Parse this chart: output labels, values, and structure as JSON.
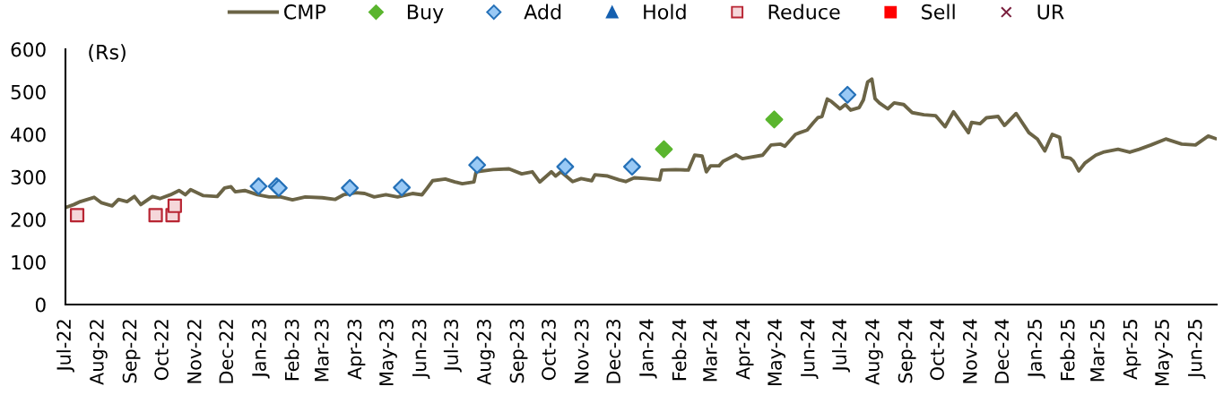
{
  "chart_data": {
    "type": "line",
    "ylabel": "(Rs)",
    "ylim": [
      0,
      600
    ],
    "yticks": [
      0,
      100,
      200,
      300,
      400,
      500,
      600
    ],
    "xlim": [
      "2022-07-01",
      "2025-06-20"
    ],
    "xticks": [
      {
        "value": "2022-07",
        "label": "Jul-22"
      },
      {
        "value": "2022-08",
        "label": "Aug-22"
      },
      {
        "value": "2022-09",
        "label": "Sep-22"
      },
      {
        "value": "2022-10",
        "label": "Oct-22"
      },
      {
        "value": "2022-11",
        "label": "Nov-22"
      },
      {
        "value": "2022-12",
        "label": "Dec-22"
      },
      {
        "value": "2023-01",
        "label": "Jan-23"
      },
      {
        "value": "2023-02",
        "label": "Feb-23"
      },
      {
        "value": "2023-03",
        "label": "Mar-23"
      },
      {
        "value": "2023-04",
        "label": "Apr-23"
      },
      {
        "value": "2023-05",
        "label": "May-23"
      },
      {
        "value": "2023-06",
        "label": "Jun-23"
      },
      {
        "value": "2023-07",
        "label": "Jul-23"
      },
      {
        "value": "2023-08",
        "label": "Aug-23"
      },
      {
        "value": "2023-09",
        "label": "Sep-23"
      },
      {
        "value": "2023-10",
        "label": "Oct-23"
      },
      {
        "value": "2023-11",
        "label": "Nov-23"
      },
      {
        "value": "2023-12",
        "label": "Dec-23"
      },
      {
        "value": "2024-01",
        "label": "Jan-24"
      },
      {
        "value": "2024-02",
        "label": "Feb-24"
      },
      {
        "value": "2024-03",
        "label": "Mar-24"
      },
      {
        "value": "2024-04",
        "label": "Apr-24"
      },
      {
        "value": "2024-05",
        "label": "May-24"
      },
      {
        "value": "2024-06",
        "label": "Jun-24"
      },
      {
        "value": "2024-07",
        "label": "Jul-24"
      },
      {
        "value": "2024-08",
        "label": "Aug-24"
      },
      {
        "value": "2024-09",
        "label": "Sep-24"
      },
      {
        "value": "2024-10",
        "label": "Oct-24"
      },
      {
        "value": "2024-11",
        "label": "Nov-24"
      },
      {
        "value": "2024-12",
        "label": "Dec-24"
      },
      {
        "value": "2025-01",
        "label": "Jan-25"
      },
      {
        "value": "2025-02",
        "label": "Feb-25"
      },
      {
        "value": "2025-03",
        "label": "Mar-25"
      },
      {
        "value": "2025-04",
        "label": "Apr-25"
      },
      {
        "value": "2025-05",
        "label": "May-25"
      },
      {
        "value": "2025-06",
        "label": "Jun-25"
      }
    ],
    "legend": "top",
    "series": [
      {
        "name": "CMP",
        "color": "#6b6446",
        "marker": "none",
        "line_style": "solid",
        "x": [
          "2022-07-01",
          "2022-07-09",
          "2022-07-15",
          "2022-07-28",
          "2022-08-04",
          "2022-08-14",
          "2022-08-20",
          "2022-08-28",
          "2022-09-04",
          "2022-09-10",
          "2022-09-21",
          "2022-09-28",
          "2022-10-08",
          "2022-10-16",
          "2022-10-22",
          "2022-10-27",
          "2022-11-08",
          "2022-11-21",
          "2022-11-28",
          "2022-12-04",
          "2022-12-08",
          "2022-12-17",
          "2022-12-29",
          "2023-01-09",
          "2023-01-20",
          "2023-01-31",
          "2023-02-12",
          "2023-02-28",
          "2023-03-12",
          "2023-03-20",
          "2023-04-01",
          "2023-04-09",
          "2023-04-18",
          "2023-04-29",
          "2023-05-10",
          "2023-05-24",
          "2023-06-02",
          "2023-06-07",
          "2023-06-12",
          "2023-06-24",
          "2023-07-03",
          "2023-07-10",
          "2023-07-21",
          "2023-07-23",
          "2023-08-08",
          "2023-08-23",
          "2023-09-04",
          "2023-09-14",
          "2023-09-21",
          "2023-10-02",
          "2023-10-06",
          "2023-10-11",
          "2023-10-22",
          "2023-10-30",
          "2023-11-09",
          "2023-11-12",
          "2023-11-24",
          "2023-12-05",
          "2023-12-11",
          "2023-12-19",
          "2023-12-30",
          "2024-01-12",
          "2024-01-14",
          "2024-01-27",
          "2024-02-08",
          "2024-02-14",
          "2024-02-21",
          "2024-02-25",
          "2024-02-29",
          "2024-03-08",
          "2024-03-12",
          "2024-03-24",
          "2024-03-30",
          "2024-04-18",
          "2024-04-26",
          "2024-05-05",
          "2024-05-09",
          "2024-05-19",
          "2024-05-23",
          "2024-05-30",
          "2024-06-05",
          "2024-06-09",
          "2024-06-13",
          "2024-06-18",
          "2024-06-22",
          "2024-06-30",
          "2024-07-05",
          "2024-07-10",
          "2024-07-18",
          "2024-07-22",
          "2024-07-26",
          "2024-07-30",
          "2024-08-02",
          "2024-08-06",
          "2024-08-14",
          "2024-08-20",
          "2024-08-29",
          "2024-09-06",
          "2024-09-17",
          "2024-09-28",
          "2024-10-07",
          "2024-10-15",
          "2024-10-23",
          "2024-10-29",
          "2024-11-01",
          "2024-11-09",
          "2024-11-15",
          "2024-11-26",
          "2024-12-02",
          "2024-12-13",
          "2024-12-25",
          "2025-01-02",
          "2025-01-09",
          "2025-01-16",
          "2025-01-23",
          "2025-01-26",
          "2025-02-02",
          "2025-02-05",
          "2025-02-10",
          "2025-02-16",
          "2025-02-26",
          "2025-03-05",
          "2025-03-19",
          "2025-03-30",
          "2025-04-08",
          "2025-04-19",
          "2025-05-03",
          "2025-05-18",
          "2025-05-31",
          "2025-06-12",
          "2025-06-19"
        ],
        "values": [
          228,
          235,
          242,
          252,
          239,
          232,
          247,
          242,
          254,
          235,
          254,
          249,
          258,
          268,
          258,
          270,
          256,
          254,
          274,
          277,
          265,
          268,
          258,
          253,
          253,
          246,
          253,
          251,
          247,
          258,
          263,
          261,
          253,
          258,
          253,
          261,
          258,
          274,
          291,
          295,
          288,
          284,
          288,
          312,
          317,
          319,
          307,
          312,
          288,
          312,
          302,
          312,
          289,
          296,
          291,
          305,
          302,
          293,
          289,
          298,
          296,
          293,
          316,
          317,
          316,
          351,
          349,
          312,
          326,
          326,
          337,
          352,
          343,
          351,
          375,
          377,
          372,
          400,
          404,
          410,
          428,
          439,
          442,
          483,
          477,
          460,
          470,
          457,
          463,
          481,
          523,
          530,
          484,
          474,
          460,
          474,
          470,
          451,
          446,
          444,
          418,
          453,
          425,
          404,
          428,
          425,
          439,
          442,
          421,
          449,
          404,
          389,
          361,
          400,
          393,
          347,
          344,
          337,
          314,
          333,
          351,
          358,
          365,
          358,
          365,
          375,
          389,
          377,
          375,
          396,
          390
        ]
      },
      {
        "name": "Buy",
        "type": "scatter",
        "color": "#5ab52e",
        "marker": "diamond",
        "x": [
          "2024-01-16",
          "2024-04-29"
        ],
        "values": [
          365,
          435
        ]
      },
      {
        "name": "Add",
        "type": "scatter",
        "color": "#99c9f5",
        "marker": "diamond",
        "x": [
          "2022-12-30",
          "2023-01-16",
          "2023-01-18",
          "2023-03-26",
          "2023-05-14",
          "2023-07-24",
          "2023-10-15",
          "2023-12-17",
          "2024-07-07"
        ],
        "values": [
          278,
          278,
          274,
          274,
          275,
          328,
          324,
          324,
          493
        ]
      },
      {
        "name": "Hold",
        "type": "scatter",
        "color": "#1560b0",
        "marker": "triangle"
      },
      {
        "name": "Reduce",
        "type": "scatter",
        "color": "#f5d7da",
        "marker": "square",
        "x": [
          "2022-07-12",
          "2022-09-24",
          "2022-10-10",
          "2022-10-12"
        ],
        "values": [
          210,
          210,
          210,
          232
        ]
      },
      {
        "name": "Sell",
        "type": "scatter",
        "color": "#ff0000",
        "marker": "square"
      },
      {
        "name": "UR",
        "type": "scatter",
        "color": "#7a1f3d",
        "marker": "cross"
      }
    ]
  }
}
